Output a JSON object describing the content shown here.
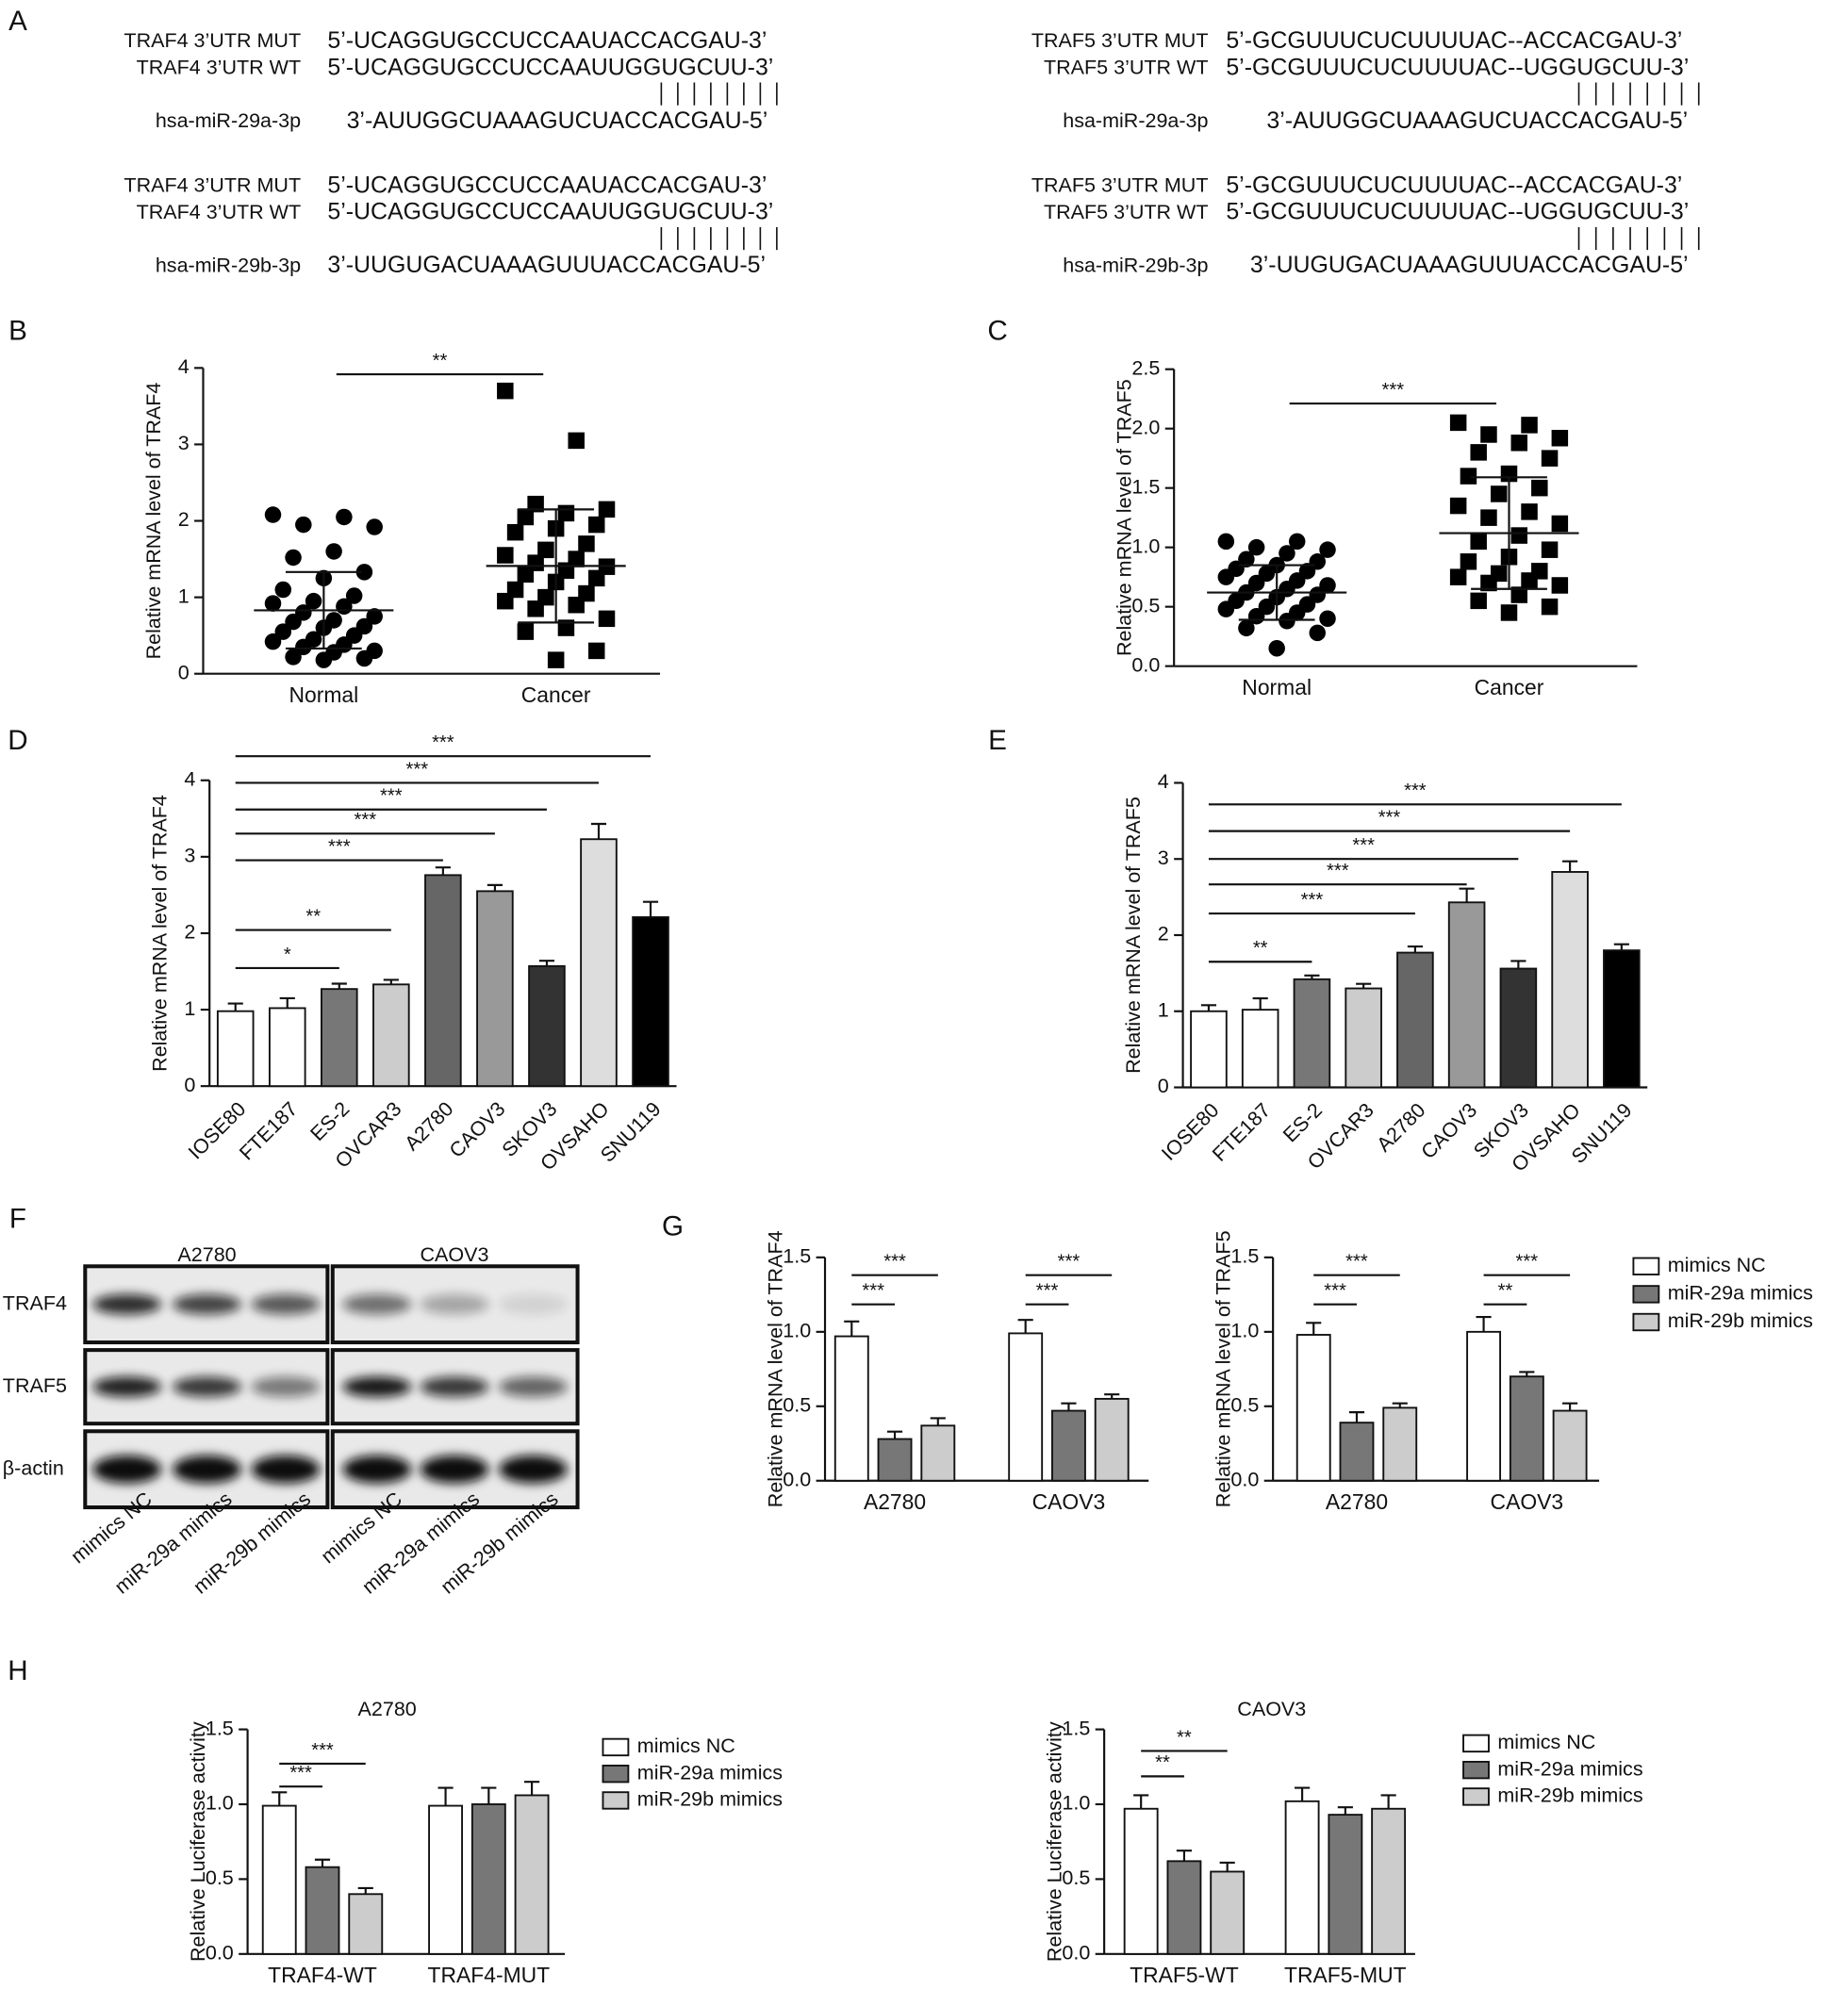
{
  "panel_labels": [
    "A",
    "B",
    "C",
    "D",
    "E",
    "F",
    "G",
    "H"
  ],
  "panel_a": {
    "blocks": [
      {
        "rows": [
          {
            "name": "TRAF4 3’UTR MUT",
            "sequence": "5’-UCAGGUGCCUCCAAUACCACGAU-3’"
          },
          {
            "name": "TRAF4 3’UTR WT",
            "sequence": "5’-UCAGGUGCCUCCAAUUGGUGCUU-3’"
          },
          {
            "name": "hsa-miR-29a-3p",
            "sequence": "3’-AUUGGCUAAAGUCUACCACGAU-5’"
          }
        ]
      },
      {
        "rows": [
          {
            "name": "TRAF4 3’UTR MUT",
            "sequence": "5’-UCAGGUGCCUCCAAUACCACGAU-3’"
          },
          {
            "name": "TRAF4 3’UTR WT",
            "sequence": "5’-UCAGGUGCCUCCAAUUGGUGCUU-3’"
          },
          {
            "name": "hsa-miR-29b-3p",
            "sequence": "3’-UUGUGACUAAAGUUUACCACGAU-5’"
          }
        ]
      },
      {
        "rows": [
          {
            "name": "TRAF5 3’UTR MUT",
            "sequence": "5’-GCGUUUCUCUUUUAC--ACCACGAU-3’"
          },
          {
            "name": "TRAF5 3’UTR WT",
            "sequence": "5’-GCGUUUCUCUUUUAC--UGGUGCUU-3’"
          },
          {
            "name": "hsa-miR-29a-3p",
            "sequence": "3’-AUUGGCUAAAGUCUACCACGAU-5’"
          }
        ]
      },
      {
        "rows": [
          {
            "name": "TRAF5 3’UTR MUT",
            "sequence": "5’-GCGUUUCUCUUUUAC--ACCACGAU-3’"
          },
          {
            "name": "TRAF5 3’UTR WT",
            "sequence": "5’-GCGUUUCUCUUUUAC--UGGUGCUU-3’"
          },
          {
            "name": "hsa-miR-29b-3p",
            "sequence": "3’-UUGUGACUAAAGUUUACCACGAU-5’"
          }
        ]
      }
    ]
  },
  "panel_f": {
    "cell_lines": [
      "A2780",
      "CAOV3"
    ],
    "proteins": [
      "TRAF4",
      "TRAF5",
      "β-actin"
    ],
    "lanes": [
      "mimics NC",
      "miR-29a mimics",
      "miR-29b mimics",
      "mimics NC",
      "miR-29a mimics",
      "miR-29b mimics"
    ]
  },
  "chart_data": [
    {
      "type": "dot-plot",
      "y_label": "Relative mRNA level of TRAF4",
      "ylim": [
        0,
        4
      ],
      "yticks": [
        0,
        1,
        2,
        3,
        4
      ],
      "groups": [
        {
          "name": "Normal",
          "marker": "circle",
          "values": [
            2.08,
            2.05,
            1.95,
            1.92,
            1.6,
            1.52,
            1.33,
            1.25,
            1.1,
            1.02,
            0.95,
            0.92,
            0.88,
            0.8,
            0.75,
            0.7,
            0.68,
            0.62,
            0.6,
            0.55,
            0.5,
            0.45,
            0.42,
            0.38,
            0.35,
            0.3,
            0.28,
            0.22,
            0.2,
            0.18
          ],
          "mean": 0.83,
          "sd": 0.5
        },
        {
          "name": "Cancer",
          "marker": "square",
          "values": [
            3.7,
            3.05,
            2.22,
            2.15,
            2.1,
            2.05,
            1.95,
            1.9,
            1.85,
            1.7,
            1.62,
            1.55,
            1.5,
            1.45,
            1.4,
            1.35,
            1.3,
            1.25,
            1.2,
            1.1,
            1.05,
            1.0,
            0.95,
            0.9,
            0.85,
            0.72,
            0.6,
            0.55,
            0.3,
            0.18
          ],
          "mean": 1.41,
          "sd": 0.74
        }
      ],
      "annotations": [
        {
          "text": "**"
        }
      ]
    },
    {
      "type": "dot-plot",
      "y_label": "Relative mRNA level of TRAF5",
      "ylim": [
        0,
        2.5
      ],
      "yticks": [
        {
          "value": 0,
          "label": "0.0"
        },
        0.5,
        {
          "value": 1,
          "label": "1.0"
        },
        1.5,
        {
          "value": 2,
          "label": "2.0"
        },
        2.5
      ],
      "groups": [
        {
          "name": "Normal",
          "marker": "circle",
          "values": [
            1.05,
            1.05,
            1.0,
            0.98,
            0.95,
            0.9,
            0.88,
            0.85,
            0.82,
            0.8,
            0.78,
            0.75,
            0.72,
            0.7,
            0.68,
            0.65,
            0.62,
            0.6,
            0.58,
            0.55,
            0.52,
            0.5,
            0.48,
            0.45,
            0.42,
            0.4,
            0.38,
            0.32,
            0.28,
            0.15
          ],
          "mean": 0.62,
          "sd": 0.23
        },
        {
          "name": "Cancer",
          "marker": "square",
          "values": [
            2.05,
            2.03,
            1.95,
            1.92,
            1.88,
            1.8,
            1.75,
            1.62,
            1.6,
            1.5,
            1.45,
            1.35,
            1.3,
            1.25,
            1.2,
            1.1,
            1.05,
            0.98,
            0.92,
            0.88,
            0.8,
            0.78,
            0.75,
            0.72,
            0.7,
            0.68,
            0.6,
            0.55,
            0.5,
            0.45
          ],
          "mean": 1.12,
          "sd": 0.47
        }
      ],
      "annotations": [
        {
          "text": "***"
        }
      ]
    },
    {
      "type": "bar",
      "y_label": "Relative mRNA level of TRAF4",
      "ylim": [
        0,
        4
      ],
      "yticks": [
        0,
        1,
        2,
        3,
        4
      ],
      "categories": [
        "IOSE80",
        "FTE187",
        "ES-2",
        "OVCAR3",
        "A2780",
        "CAOV3",
        "SKOV3",
        "OVSAHO",
        "SNU119"
      ],
      "values": [
        0.98,
        1.02,
        1.27,
        1.33,
        2.76,
        2.55,
        1.57,
        3.23,
        2.21
      ],
      "errors": [
        0.1,
        0.13,
        0.07,
        0.06,
        0.1,
        0.08,
        0.07,
        0.2,
        0.2
      ],
      "colors": [
        "#ffffff",
        "#ffffff",
        "#777777",
        "#cccccc",
        "#666666",
        "#999999",
        "#333333",
        "#dddddd",
        "#000000"
      ],
      "annotations": [
        {
          "text": "*"
        },
        {
          "text": "**"
        },
        {
          "text": "***"
        },
        {
          "text": "***"
        },
        {
          "text": "***"
        },
        {
          "text": "***"
        },
        {
          "text": "***"
        }
      ]
    },
    {
      "type": "bar",
      "y_label": "Relative mRNA level of TRAF5",
      "ylim": [
        0,
        4
      ],
      "yticks": [
        0,
        1,
        2,
        3,
        4
      ],
      "categories": [
        "IOSE80",
        "FTE187",
        "ES-2",
        "OVCAR3",
        "A2780",
        "CAOV3",
        "SKOV3",
        "OVSAHO",
        "SNU119"
      ],
      "values": [
        1.0,
        1.02,
        1.42,
        1.3,
        1.77,
        2.43,
        1.56,
        2.83,
        1.8
      ],
      "errors": [
        0.08,
        0.15,
        0.05,
        0.06,
        0.08,
        0.18,
        0.1,
        0.14,
        0.08
      ],
      "colors": [
        "#ffffff",
        "#ffffff",
        "#777777",
        "#cccccc",
        "#666666",
        "#999999",
        "#333333",
        "#dddddd",
        "#000000"
      ],
      "annotations": [
        {
          "text": "**"
        },
        {
          "text": "***"
        },
        {
          "text": "***"
        },
        {
          "text": "***"
        },
        {
          "text": "***"
        },
        {
          "text": "***"
        }
      ]
    },
    {
      "type": "grouped-bar",
      "y_label": "Relative mRNA level of TRAF4",
      "ylim": [
        0,
        1.5
      ],
      "yticks": [
        {
          "value": 0,
          "label": "0.0"
        },
        0.5,
        {
          "value": 1,
          "label": "1.0"
        },
        1.5
      ],
      "categories": [
        "A2780",
        "CAOV3"
      ],
      "series": [
        {
          "color": "#ffffff",
          "values": [
            0.97,
            0.99
          ],
          "errors": [
            0.1,
            0.09
          ]
        },
        {
          "color": "#777777",
          "values": [
            0.28,
            0.47
          ],
          "errors": [
            0.05,
            0.05
          ]
        },
        {
          "color": "#cccccc",
          "values": [
            0.37,
            0.55
          ],
          "errors": [
            0.05,
            0.03
          ]
        }
      ],
      "annotations": [
        {
          "text": "***"
        },
        {
          "text": "***"
        },
        {
          "text": "***"
        },
        {
          "text": "***"
        }
      ]
    },
    {
      "type": "grouped-bar",
      "y_label": "Relative mRNA level of TRAF5",
      "ylim": [
        0,
        1.5
      ],
      "yticks": [
        {
          "value": 0,
          "label": "0.0"
        },
        0.5,
        {
          "value": 1,
          "label": "1.0"
        },
        1.5
      ],
      "categories": [
        "A2780",
        "CAOV3"
      ],
      "series": [
        {
          "name": "mimics NC",
          "color": "#ffffff",
          "values": [
            0.98,
            1.0
          ],
          "errors": [
            0.08,
            0.1
          ]
        },
        {
          "name": "miR-29a mimics",
          "color": "#777777",
          "values": [
            0.39,
            0.7
          ],
          "errors": [
            0.07,
            0.03
          ]
        },
        {
          "name": "miR-29b mimics",
          "color": "#cccccc",
          "values": [
            0.49,
            0.47
          ],
          "errors": [
            0.03,
            0.05
          ]
        }
      ],
      "annotations": [
        {
          "text": "***"
        },
        {
          "text": "***"
        },
        {
          "text": "**"
        },
        {
          "text": "***"
        }
      ]
    },
    {
      "type": "grouped-bar",
      "title": "A2780",
      "y_label": "Relative Luciferase activity",
      "ylim": [
        0,
        1.5
      ],
      "yticks": [
        {
          "value": 0,
          "label": "0.0"
        },
        0.5,
        {
          "value": 1,
          "label": "1.0"
        },
        1.5
      ],
      "categories": [
        "TRAF4-WT",
        "TRAF4-MUT"
      ],
      "series": [
        {
          "name": "mimics NC",
          "color": "#ffffff",
          "values": [
            0.99,
            0.99
          ],
          "errors": [
            0.09,
            0.12
          ]
        },
        {
          "name": "miR-29a mimics",
          "color": "#777777",
          "values": [
            0.58,
            1.0
          ],
          "errors": [
            0.05,
            0.11
          ]
        },
        {
          "name": "miR-29b mimics",
          "color": "#cccccc",
          "values": [
            0.4,
            1.06
          ],
          "errors": [
            0.04,
            0.09
          ]
        }
      ],
      "annotations": [
        {
          "text": "***"
        },
        {
          "text": "***"
        }
      ]
    },
    {
      "type": "grouped-bar",
      "title": "CAOV3",
      "y_label": "Relative Luciferase activity",
      "ylim": [
        0,
        1.5
      ],
      "yticks": [
        {
          "value": 0,
          "label": "0.0"
        },
        0.5,
        {
          "value": 1,
          "label": "1.0"
        },
        1.5
      ],
      "categories": [
        "TRAF5-WT",
        "TRAF5-MUT"
      ],
      "series": [
        {
          "name": "mimics NC",
          "color": "#ffffff",
          "values": [
            0.97,
            1.02
          ],
          "errors": [
            0.09,
            0.09
          ]
        },
        {
          "name": "miR-29a mimics",
          "color": "#777777",
          "values": [
            0.62,
            0.93
          ],
          "errors": [
            0.07,
            0.05
          ]
        },
        {
          "name": "miR-29b mimics",
          "color": "#cccccc",
          "values": [
            0.55,
            0.97
          ],
          "errors": [
            0.06,
            0.09
          ]
        }
      ],
      "annotations": [
        {
          "text": "**"
        },
        {
          "text": "**"
        }
      ]
    }
  ]
}
